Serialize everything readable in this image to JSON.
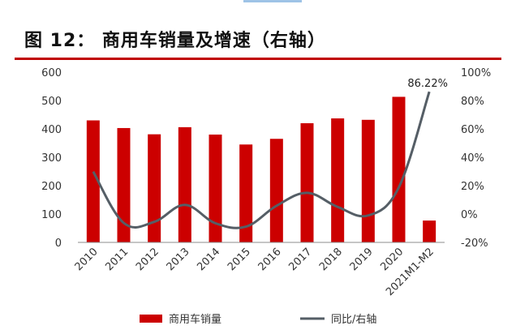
{
  "header": {
    "title": "图 12： 商用车销量及增速（右轴）"
  },
  "chart_data": {
    "type": "bar",
    "categories": [
      "2010",
      "2011",
      "2012",
      "2013",
      "2014",
      "2015",
      "2016",
      "2017",
      "2018",
      "2019",
      "2020",
      "2021M1-M2"
    ],
    "series": [
      {
        "name": "商用车销量",
        "type": "bar",
        "axis": "left",
        "color": "#cc0000",
        "values": [
          430,
          403,
          381,
          406,
          380,
          345,
          365,
          420,
          437,
          432,
          513,
          77
        ]
      },
      {
        "name": "同比/右轴",
        "type": "line",
        "axis": "right",
        "color": "#555e66",
        "values": [
          29.9,
          -6.3,
          -5.5,
          6.4,
          -6.5,
          -8.9,
          5.8,
          14.9,
          5.0,
          -1.0,
          18.7,
          86.22
        ]
      }
    ],
    "y_left": {
      "min": 0,
      "max": 600,
      "ticks": [
        0,
        100,
        200,
        300,
        400,
        500,
        600
      ]
    },
    "y_right": {
      "min": -20,
      "max": 100,
      "ticks": [
        "-20%",
        "0%",
        "20%",
        "40%",
        "60%",
        "80%",
        "100%"
      ]
    },
    "annotation": {
      "text": "86.22%",
      "category_index": 11,
      "series": "同比/右轴"
    },
    "grid": false,
    "legend_position": "bottom"
  }
}
